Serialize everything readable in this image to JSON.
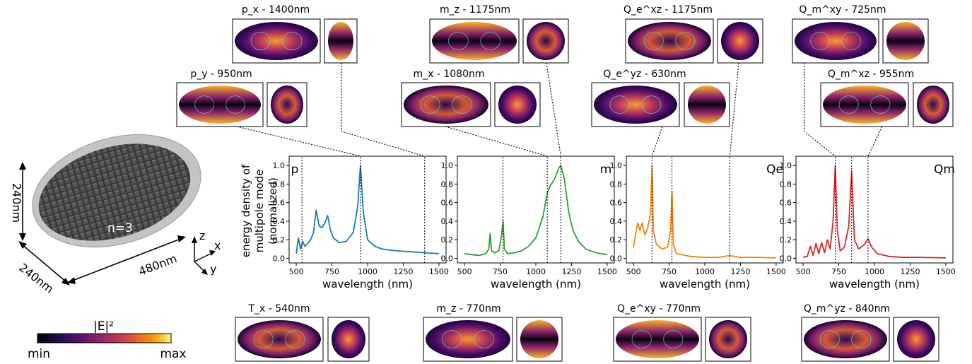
{
  "chart_data": [
    {
      "type": "line",
      "panel_label": "p",
      "color": "#1f77b4",
      "ylabel_lines": [
        "energy density of",
        "multipole mode",
        "(normalized)"
      ],
      "xlabel": "wavelength (nm)",
      "xlim": [
        450,
        1550
      ],
      "ylim": [
        -0.05,
        1.1
      ],
      "xticks": [
        500,
        750,
        1000,
        1250,
        1500
      ],
      "yticks": [
        0.0,
        0.2,
        0.4,
        0.6,
        0.8,
        1.0
      ],
      "series": [
        {
          "x": [
            500,
            515,
            530,
            545,
            560,
            580,
            600,
            620,
            640,
            660,
            680,
            700,
            720,
            740,
            760,
            800,
            850,
            900,
            930,
            950,
            970,
            1000,
            1050,
            1100,
            1200,
            1300,
            1400,
            1500
          ],
          "y": [
            0.05,
            0.22,
            0.1,
            0.18,
            0.13,
            0.16,
            0.2,
            0.27,
            0.52,
            0.35,
            0.33,
            0.38,
            0.46,
            0.3,
            0.22,
            0.17,
            0.18,
            0.28,
            0.55,
            1.0,
            0.5,
            0.2,
            0.13,
            0.1,
            0.08,
            0.07,
            0.06,
            0.05
          ]
        }
      ],
      "markers": [
        540,
        950,
        1400
      ]
    },
    {
      "type": "line",
      "panel_label": "m",
      "color": "#2ca02c",
      "xlabel": "wavelength (nm)",
      "xlim": [
        450,
        1550
      ],
      "ylim": [
        -0.05,
        1.1
      ],
      "xticks": [
        500,
        750,
        1000,
        1250,
        1500
      ],
      "yticks": [
        0.0,
        0.2,
        0.4,
        0.6,
        0.8,
        1.0
      ],
      "series": [
        {
          "x": [
            500,
            550,
            600,
            650,
            670,
            680,
            690,
            710,
            740,
            760,
            770,
            780,
            800,
            850,
            900,
            950,
            1000,
            1050,
            1080,
            1100,
            1130,
            1160,
            1175,
            1200,
            1230,
            1260,
            1300,
            1350,
            1400,
            1450,
            1500
          ],
          "y": [
            0.05,
            0.04,
            0.03,
            0.05,
            0.1,
            0.27,
            0.08,
            0.06,
            0.08,
            0.25,
            0.4,
            0.1,
            0.05,
            0.06,
            0.08,
            0.13,
            0.22,
            0.45,
            0.7,
            0.78,
            0.85,
            0.97,
            1.0,
            0.85,
            0.5,
            0.3,
            0.18,
            0.1,
            0.07,
            0.05,
            0.04
          ]
        }
      ],
      "markers": [
        770,
        1080,
        1175
      ]
    },
    {
      "type": "line",
      "panel_label": "Qe",
      "color": "#ff7f0e",
      "xlabel": "wavelength (nm)",
      "xlim": [
        450,
        1550
      ],
      "ylim": [
        -0.05,
        1.1
      ],
      "xticks": [
        500,
        750,
        1000,
        1250,
        1500
      ],
      "yticks": [
        0.0,
        0.2,
        0.4,
        0.6,
        0.8,
        1.0
      ],
      "series": [
        {
          "x": [
            500,
            520,
            530,
            545,
            560,
            580,
            600,
            620,
            630,
            640,
            660,
            700,
            740,
            760,
            770,
            780,
            800,
            900,
            1000,
            1100,
            1175,
            1250,
            1350,
            1500
          ],
          "y": [
            0.12,
            0.3,
            0.38,
            0.3,
            0.38,
            0.25,
            0.33,
            0.48,
            1.0,
            0.3,
            0.15,
            0.1,
            0.12,
            0.3,
            0.72,
            0.15,
            0.05,
            0.02,
            0.01,
            0.01,
            0.03,
            0.01,
            0.01,
            0.005
          ]
        }
      ],
      "markers": [
        630,
        770,
        1175
      ]
    },
    {
      "type": "line",
      "panel_label": "Qm",
      "color": "#d62728",
      "xlabel": "wavelength (nm)",
      "xlim": [
        450,
        1550
      ],
      "ylim": [
        -0.05,
        1.1
      ],
      "xticks": [
        500,
        750,
        1000,
        1250,
        1500
      ],
      "yticks": [
        0.0,
        0.2,
        0.4,
        0.6,
        0.8,
        1.0
      ],
      "series": [
        {
          "x": [
            500,
            530,
            550,
            570,
            590,
            610,
            630,
            650,
            670,
            690,
            710,
            725,
            740,
            760,
            790,
            820,
            840,
            860,
            890,
            930,
            955,
            980,
            1020,
            1100,
            1200,
            1300,
            1500
          ],
          "y": [
            0.01,
            0.02,
            0.13,
            0.03,
            0.16,
            0.05,
            0.17,
            0.06,
            0.2,
            0.1,
            0.4,
            1.0,
            0.3,
            0.08,
            0.12,
            0.35,
            0.94,
            0.2,
            0.1,
            0.15,
            0.21,
            0.12,
            0.05,
            0.02,
            0.01,
            0.01,
            0.005
          ]
        }
      ],
      "markers": [
        725,
        840,
        955
      ]
    }
  ],
  "mode_labels": {
    "top_row1": [
      "p_x - 1400nm",
      "m_z - 1175nm",
      "Q_e^xz - 1175nm",
      "Q_m^xy - 725nm"
    ],
    "top_row2": [
      "p_y - 950nm",
      "m_x - 1080nm",
      "Q_e^yz - 630nm",
      "Q_m^xz - 955nm"
    ],
    "bottom_row": [
      "T_x - 540nm",
      "m_z - 770nm",
      "Q_e^xy - 770nm",
      "Q_m^yz - 840nm"
    ]
  },
  "particle": {
    "dim_height": "240nm",
    "dim_depth": "240nm",
    "dim_length": "480nm",
    "index_label": "n=3",
    "axis_x": "x",
    "axis_y": "y",
    "axis_z": "z"
  },
  "colorbar": {
    "title": "|E|²",
    "min_label": "min",
    "max_label": "max"
  }
}
